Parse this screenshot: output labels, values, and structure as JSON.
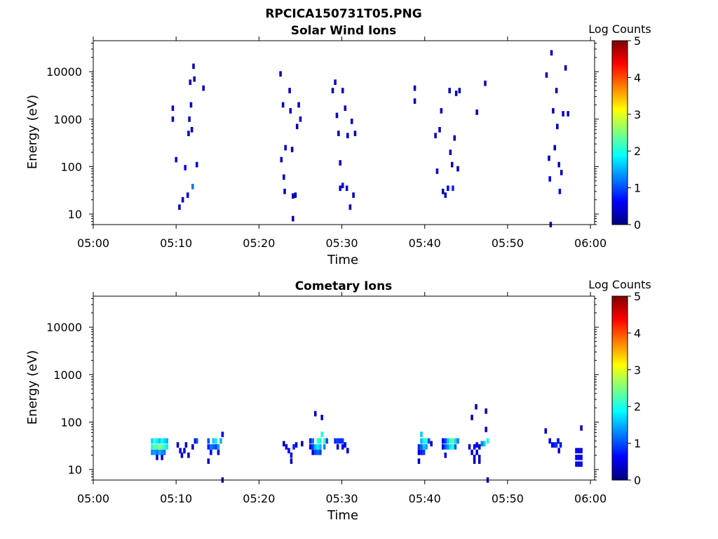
{
  "figure_title": "RPCICA150731T05.PNG",
  "colors": {
    "colormap": [
      "#00007f",
      "#0000ff",
      "#007fff",
      "#00ffff",
      "#7fff7f",
      "#ffff00",
      "#ff7f00",
      "#ff0000",
      "#7f0000"
    ]
  },
  "chart_data": [
    {
      "type": "heatmap",
      "title": "Solar Wind Ions",
      "xlabel": "Time",
      "ylabel": "Energy (eV)",
      "x_tick_labels": [
        "05:00",
        "05:10",
        "05:20",
        "05:30",
        "05:40",
        "05:50",
        "06:00"
      ],
      "x_tick_minutes": [
        0,
        10,
        20,
        30,
        40,
        50,
        60
      ],
      "xlim_minutes": [
        0,
        60.5
      ],
      "y_scale": "log",
      "y_tick_labels": [
        "10",
        "100",
        "1000",
        "10000"
      ],
      "y_tick_values": [
        10,
        100,
        1000,
        10000
      ],
      "ylim": [
        6,
        45000
      ],
      "colorbar": {
        "label": "Log Counts",
        "min": 0,
        "max": 5,
        "tick_labels": [
          "0",
          "1",
          "2",
          "3",
          "4",
          "5"
        ]
      },
      "cells": [
        [
          9.6,
          1700,
          0.3
        ],
        [
          9.6,
          1000,
          0.3
        ],
        [
          10.0,
          140,
          0.5
        ],
        [
          10.4,
          14,
          0.3
        ],
        [
          10.8,
          20,
          0.4
        ],
        [
          11.1,
          95,
          0.6
        ],
        [
          11.4,
          25,
          0.5
        ],
        [
          11.5,
          500,
          0.3
        ],
        [
          11.6,
          1000,
          0.3
        ],
        [
          11.7,
          6000,
          0.3
        ],
        [
          11.8,
          2000,
          0.4
        ],
        [
          11.9,
          600,
          0.3
        ],
        [
          12.0,
          38,
          1.2
        ],
        [
          12.1,
          13000,
          0.3
        ],
        [
          12.2,
          7000,
          0.3
        ],
        [
          12.5,
          110,
          0.4
        ],
        [
          13.3,
          4500,
          0.3
        ],
        [
          22.6,
          9000,
          0.3
        ],
        [
          22.7,
          140,
          0.3
        ],
        [
          22.9,
          2000,
          0.3
        ],
        [
          23.0,
          60,
          0.3
        ],
        [
          23.1,
          30,
          0.3
        ],
        [
          23.2,
          250,
          0.3
        ],
        [
          23.7,
          4000,
          0.3
        ],
        [
          23.8,
          1500,
          0.3
        ],
        [
          24.0,
          230,
          0.3
        ],
        [
          24.1,
          24,
          0.3
        ],
        [
          24.1,
          8,
          0.3
        ],
        [
          24.4,
          25,
          0.3
        ],
        [
          24.6,
          700,
          0.3
        ],
        [
          24.8,
          2000,
          0.3
        ],
        [
          25.0,
          1000,
          0.3
        ],
        [
          28.9,
          4000,
          0.3
        ],
        [
          29.2,
          6000,
          0.3
        ],
        [
          29.4,
          1200,
          0.3
        ],
        [
          29.6,
          500,
          0.3
        ],
        [
          29.8,
          35,
          0.4
        ],
        [
          29.8,
          120,
          0.3
        ],
        [
          30.1,
          4000,
          0.3
        ],
        [
          30.1,
          40,
          0.6
        ],
        [
          30.4,
          1700,
          0.3
        ],
        [
          30.6,
          35,
          0.4
        ],
        [
          30.7,
          450,
          0.3
        ],
        [
          31.0,
          14,
          0.3
        ],
        [
          31.2,
          900,
          0.3
        ],
        [
          31.4,
          25,
          0.3
        ],
        [
          31.6,
          500,
          0.3
        ],
        [
          38.8,
          4500,
          0.3
        ],
        [
          38.8,
          2400,
          0.3
        ],
        [
          41.3,
          450,
          0.3
        ],
        [
          41.5,
          80,
          0.4
        ],
        [
          41.8,
          600,
          0.3
        ],
        [
          42.0,
          1500,
          0.3
        ],
        [
          42.2,
          30,
          0.3
        ],
        [
          42.5,
          25,
          0.3
        ],
        [
          42.8,
          35,
          0.6
        ],
        [
          43.0,
          4000,
          0.3
        ],
        [
          43.1,
          200,
          0.3
        ],
        [
          43.3,
          110,
          0.3
        ],
        [
          43.4,
          35,
          0.8
        ],
        [
          43.6,
          400,
          0.3
        ],
        [
          43.8,
          3500,
          0.3
        ],
        [
          44.0,
          90,
          0.3
        ],
        [
          44.2,
          4000,
          0.3
        ],
        [
          46.3,
          1400,
          0.3
        ],
        [
          47.3,
          5700,
          0.3
        ],
        [
          54.7,
          8500,
          0.3
        ],
        [
          55.0,
          150,
          0.3
        ],
        [
          55.1,
          55,
          0.6
        ],
        [
          55.2,
          6,
          0.3
        ],
        [
          55.3,
          25000,
          0.3
        ],
        [
          55.5,
          1500,
          0.3
        ],
        [
          55.7,
          250,
          0.3
        ],
        [
          55.9,
          4000,
          0.3
        ],
        [
          56.0,
          700,
          0.3
        ],
        [
          56.2,
          110,
          0.3
        ],
        [
          56.3,
          30,
          0.5
        ],
        [
          56.5,
          75,
          0.3
        ],
        [
          56.7,
          1300,
          0.3
        ],
        [
          57.0,
          12000,
          0.3
        ],
        [
          57.3,
          1300,
          0.3
        ]
      ]
    },
    {
      "type": "heatmap",
      "title": "Cometary Ions",
      "xlabel": "Time",
      "ylabel": "Energy (eV)",
      "x_tick_labels": [
        "05:00",
        "05:10",
        "05:20",
        "05:30",
        "05:40",
        "05:50",
        "06:00"
      ],
      "x_tick_minutes": [
        0,
        10,
        20,
        30,
        40,
        50,
        60
      ],
      "xlim_minutes": [
        0,
        60.5
      ],
      "y_scale": "log",
      "y_tick_labels": [
        "10",
        "100",
        "1000",
        "10000"
      ],
      "y_tick_values": [
        10,
        100,
        1000,
        10000
      ],
      "ylim": [
        6,
        45000
      ],
      "colorbar": {
        "label": "Log Counts",
        "min": 0,
        "max": 5,
        "tick_labels": [
          "0",
          "1",
          "2",
          "3",
          "4",
          "5"
        ]
      },
      "cells": [
        [
          7.1,
          40,
          1.7
        ],
        [
          7.1,
          30,
          2.0
        ],
        [
          7.1,
          23,
          1.3
        ],
        [
          7.4,
          40,
          2.1
        ],
        [
          7.4,
          30,
          2.4
        ],
        [
          7.4,
          23,
          1.4
        ],
        [
          7.7,
          40,
          1.8
        ],
        [
          7.7,
          30,
          2.2
        ],
        [
          7.7,
          23,
          1.2
        ],
        [
          7.7,
          18,
          0.5
        ],
        [
          8.0,
          40,
          1.6
        ],
        [
          8.0,
          30,
          2.5
        ],
        [
          8.0,
          23,
          1.5
        ],
        [
          8.3,
          40,
          1.9
        ],
        [
          8.3,
          30,
          2.3
        ],
        [
          8.3,
          23,
          1.3
        ],
        [
          8.3,
          18,
          0.4
        ],
        [
          8.6,
          40,
          1.7
        ],
        [
          8.6,
          30,
          2.1
        ],
        [
          8.6,
          23,
          1.2
        ],
        [
          8.9,
          40,
          1.5
        ],
        [
          8.9,
          30,
          1.8
        ],
        [
          10.2,
          33,
          0.3
        ],
        [
          10.5,
          25,
          0.6
        ],
        [
          10.7,
          20,
          0.4
        ],
        [
          11.0,
          25,
          0.5
        ],
        [
          11.2,
          33,
          0.3
        ],
        [
          11.5,
          20,
          0.4
        ],
        [
          12.0,
          30,
          0.3
        ],
        [
          12.3,
          40,
          0.6
        ],
        [
          12.5,
          40,
          1.0
        ],
        [
          13.9,
          40,
          1.0
        ],
        [
          13.9,
          30,
          0.8
        ],
        [
          13.9,
          15,
          0.3
        ],
        [
          14.2,
          30,
          1.2
        ],
        [
          14.2,
          23,
          0.6
        ],
        [
          14.5,
          40,
          1.6
        ],
        [
          14.5,
          30,
          1.1
        ],
        [
          14.8,
          40,
          1.8
        ],
        [
          14.8,
          30,
          0.9
        ],
        [
          15.1,
          30,
          1.4
        ],
        [
          15.1,
          23,
          0.5
        ],
        [
          15.4,
          40,
          1.5
        ],
        [
          15.6,
          55,
          0.6
        ],
        [
          15.6,
          6,
          0.3
        ],
        [
          23.0,
          35,
          0.3
        ],
        [
          23.3,
          30,
          0.5
        ],
        [
          23.6,
          25,
          0.6
        ],
        [
          23.9,
          20,
          0.6
        ],
        [
          23.9,
          15,
          0.3
        ],
        [
          24.2,
          30,
          0.8
        ],
        [
          24.5,
          33,
          0.4
        ],
        [
          25.2,
          35,
          0.3
        ],
        [
          26.2,
          40,
          0.8
        ],
        [
          26.2,
          30,
          0.6
        ],
        [
          26.5,
          40,
          1.2
        ],
        [
          26.5,
          30,
          0.9
        ],
        [
          26.5,
          23,
          0.5
        ],
        [
          26.8,
          30,
          1.6
        ],
        [
          26.8,
          23,
          1.0
        ],
        [
          26.8,
          150,
          0.3
        ],
        [
          27.1,
          40,
          2.1
        ],
        [
          27.1,
          30,
          1.8
        ],
        [
          27.1,
          23,
          1.1
        ],
        [
          27.4,
          40,
          1.9
        ],
        [
          27.4,
          30,
          1.5
        ],
        [
          27.4,
          23,
          0.9
        ],
        [
          27.6,
          55,
          2.0
        ],
        [
          27.6,
          125,
          0.3
        ],
        [
          27.9,
          40,
          2.2
        ],
        [
          27.9,
          30,
          1.3
        ],
        [
          28.2,
          40,
          1.0
        ],
        [
          29.2,
          40,
          0.8
        ],
        [
          29.5,
          40,
          0.9
        ],
        [
          29.5,
          30,
          0.4
        ],
        [
          29.8,
          40,
          0.8
        ],
        [
          30.1,
          40,
          0.9
        ],
        [
          30.1,
          30,
          0.6
        ],
        [
          30.4,
          33,
          0.5
        ],
        [
          30.7,
          25,
          0.3
        ],
        [
          39.3,
          30,
          0.8
        ],
        [
          39.3,
          23,
          0.4
        ],
        [
          39.3,
          15,
          0.3
        ],
        [
          39.6,
          40,
          1.5
        ],
        [
          39.6,
          30,
          1.1
        ],
        [
          39.6,
          23,
          0.7
        ],
        [
          39.6,
          55,
          1.6
        ],
        [
          39.9,
          40,
          1.9
        ],
        [
          39.9,
          30,
          1.6
        ],
        [
          39.9,
          23,
          0.9
        ],
        [
          40.2,
          40,
          2.1
        ],
        [
          40.2,
          30,
          1.4
        ],
        [
          40.5,
          40,
          1.0
        ],
        [
          40.8,
          35,
          0.4
        ],
        [
          42.2,
          40,
          0.6
        ],
        [
          42.2,
          30,
          0.5
        ],
        [
          42.5,
          40,
          1.0
        ],
        [
          42.5,
          30,
          1.1
        ],
        [
          42.5,
          20,
          0.4
        ],
        [
          42.8,
          40,
          1.6
        ],
        [
          42.8,
          30,
          1.4
        ],
        [
          43.1,
          40,
          2.2
        ],
        [
          43.1,
          30,
          1.8
        ],
        [
          43.4,
          40,
          2.4
        ],
        [
          43.4,
          30,
          2.0
        ],
        [
          43.7,
          40,
          1.7
        ],
        [
          43.7,
          30,
          1.1
        ],
        [
          44.0,
          40,
          1.2
        ],
        [
          45.4,
          30,
          0.4
        ],
        [
          45.7,
          23,
          0.5
        ],
        [
          45.7,
          125,
          0.3
        ],
        [
          46.0,
          30,
          0.5
        ],
        [
          46.0,
          18,
          0.4
        ],
        [
          46.0,
          15,
          0.3
        ],
        [
          46.3,
          33,
          0.6
        ],
        [
          46.3,
          23,
          0.4
        ],
        [
          46.6,
          30,
          0.5
        ],
        [
          46.6,
          18,
          0.3
        ],
        [
          46.6,
          15,
          0.3
        ],
        [
          46.9,
          35,
          1.3
        ],
        [
          47.2,
          35,
          1.6
        ],
        [
          47.4,
          70,
          0.3
        ],
        [
          47.4,
          170,
          0.3
        ],
        [
          46.2,
          210,
          0.3
        ],
        [
          47.6,
          40,
          2.0
        ],
        [
          47.6,
          6,
          0.3
        ],
        [
          54.6,
          65,
          0.3
        ],
        [
          55.1,
          40,
          0.5
        ],
        [
          55.4,
          33,
          0.6
        ],
        [
          55.7,
          33,
          0.8
        ],
        [
          55.9,
          33,
          0.9
        ],
        [
          56.1,
          40,
          0.6
        ],
        [
          56.2,
          25,
          0.4
        ],
        [
          56.4,
          33,
          0.7
        ],
        [
          58.3,
          25,
          0.5
        ],
        [
          58.3,
          18,
          0.5
        ],
        [
          58.3,
          13,
          0.5
        ],
        [
          58.6,
          25,
          0.5
        ],
        [
          58.6,
          18,
          0.5
        ],
        [
          58.6,
          13,
          0.5
        ],
        [
          58.9,
          25,
          0.5
        ],
        [
          58.9,
          18,
          0.5
        ],
        [
          58.9,
          13,
          0.5
        ],
        [
          58.9,
          75,
          0.3
        ]
      ]
    }
  ]
}
